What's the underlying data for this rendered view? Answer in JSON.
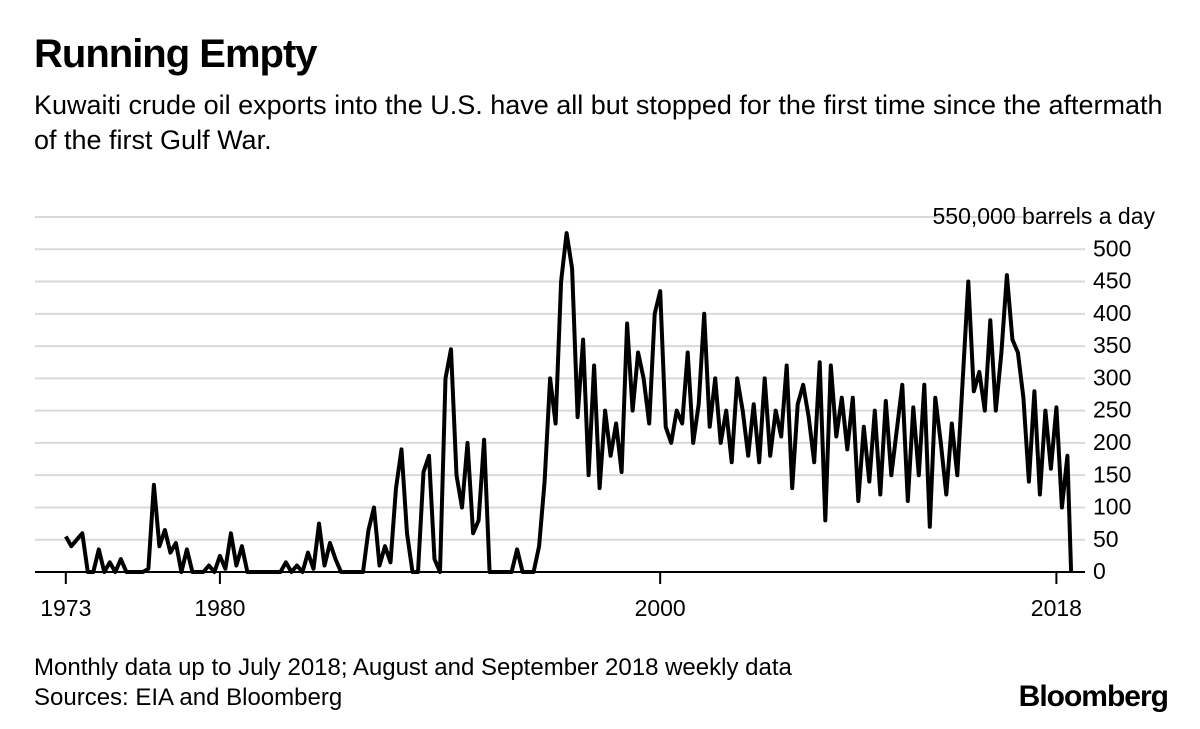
{
  "chart_data": {
    "type": "line",
    "title": "Running Empty",
    "subtitle": "Kuwaiti crude oil exports into the U.S. have all but stopped for the first time since the aftermath of the first Gulf War.",
    "footnote": "Monthly data up to July 2018; August and September 2018 weekly data",
    "source": "Sources: EIA and Bloomberg",
    "brand": "Bloomberg",
    "color": "#000000",
    "grid": true,
    "xlim": [
      1971.6,
      2019.3
    ],
    "xticks": [
      1973,
      1980,
      2000,
      2018
    ],
    "ylim": [
      0,
      550
    ],
    "yticks": [
      0,
      50,
      100,
      150,
      200,
      250,
      300,
      350,
      400,
      450,
      500,
      {
        "value": 550,
        "label": "550,000 barrels a day"
      }
    ],
    "x": [
      1973,
      1973.25,
      1973.5,
      1973.75,
      1974,
      1974.25,
      1974.5,
      1974.75,
      1975,
      1975.25,
      1975.5,
      1975.75,
      1976,
      1976.25,
      1976.5,
      1976.75,
      1977,
      1977.25,
      1977.5,
      1977.75,
      1978,
      1978.25,
      1978.5,
      1978.75,
      1979,
      1979.25,
      1979.5,
      1979.75,
      1980,
      1980.25,
      1980.5,
      1980.75,
      1981,
      1981.25,
      1981.5,
      1981.75,
      1982,
      1982.25,
      1982.5,
      1982.75,
      1983,
      1983.25,
      1983.5,
      1983.75,
      1984,
      1984.25,
      1984.5,
      1984.75,
      1985,
      1985.25,
      1985.5,
      1985.75,
      1986,
      1986.25,
      1986.5,
      1986.75,
      1987,
      1987.25,
      1987.5,
      1987.75,
      1988,
      1988.25,
      1988.5,
      1988.75,
      1989,
      1989.25,
      1989.5,
      1989.75,
      1990,
      1990.25,
      1990.5,
      1990.75,
      1991,
      1991.25,
      1991.5,
      1991.75,
      1992,
      1992.25,
      1992.5,
      1992.75,
      1993,
      1993.25,
      1993.5,
      1993.75,
      1994,
      1994.25,
      1994.5,
      1994.75,
      1995,
      1995.25,
      1995.5,
      1995.75,
      1996,
      1996.25,
      1996.5,
      1996.75,
      1997,
      1997.25,
      1997.5,
      1997.75,
      1998,
      1998.25,
      1998.5,
      1998.75,
      1999,
      1999.25,
      1999.5,
      1999.75,
      2000,
      2000.25,
      2000.5,
      2000.75,
      2001,
      2001.25,
      2001.5,
      2001.75,
      2002,
      2002.25,
      2002.5,
      2002.75,
      2003,
      2003.25,
      2003.5,
      2003.75,
      2004,
      2004.25,
      2004.5,
      2004.75,
      2005,
      2005.25,
      2005.5,
      2005.75,
      2006,
      2006.25,
      2006.5,
      2006.75,
      2007,
      2007.25,
      2007.5,
      2007.75,
      2008,
      2008.25,
      2008.5,
      2008.75,
      2009,
      2009.25,
      2009.5,
      2009.75,
      2010,
      2010.25,
      2010.5,
      2010.75,
      2011,
      2011.25,
      2011.5,
      2011.75,
      2012,
      2012.25,
      2012.5,
      2012.75,
      2013,
      2013.25,
      2013.5,
      2013.75,
      2014,
      2014.25,
      2014.5,
      2014.75,
      2015,
      2015.25,
      2015.5,
      2015.75,
      2016,
      2016.25,
      2016.5,
      2016.75,
      2017,
      2017.25,
      2017.5,
      2017.75,
      2018,
      2018.25,
      2018.5,
      2018.67
    ],
    "values": [
      55,
      40,
      50,
      60,
      0,
      0,
      35,
      0,
      15,
      0,
      20,
      0,
      0,
      0,
      0,
      5,
      135,
      40,
      65,
      30,
      45,
      0,
      35,
      0,
      0,
      0,
      10,
      0,
      25,
      5,
      60,
      10,
      40,
      0,
      0,
      0,
      0,
      0,
      0,
      0,
      15,
      0,
      10,
      0,
      30,
      5,
      75,
      10,
      45,
      20,
      0,
      0,
      0,
      0,
      0,
      65,
      100,
      10,
      40,
      15,
      130,
      190,
      60,
      0,
      0,
      155,
      180,
      20,
      0,
      300,
      345,
      150,
      100,
      200,
      60,
      80,
      205,
      0,
      0,
      0,
      0,
      0,
      35,
      0,
      0,
      0,
      40,
      140,
      300,
      230,
      450,
      525,
      470,
      240,
      360,
      150,
      320,
      130,
      250,
      180,
      230,
      155,
      385,
      250,
      340,
      300,
      230,
      400,
      435,
      225,
      200,
      250,
      230,
      340,
      200,
      260,
      400,
      225,
      300,
      200,
      250,
      170,
      300,
      250,
      180,
      260,
      170,
      300,
      180,
      250,
      210,
      320,
      130,
      260,
      290,
      240,
      170,
      325,
      80,
      320,
      210,
      270,
      190,
      270,
      110,
      225,
      140,
      250,
      120,
      265,
      150,
      220,
      290,
      110,
      255,
      150,
      290,
      70,
      270,
      200,
      120,
      230,
      150,
      300,
      450,
      280,
      310,
      250,
      390,
      250,
      340,
      460,
      360,
      340,
      270,
      140,
      280,
      120,
      250,
      160,
      255,
      100,
      180,
      0
    ]
  }
}
